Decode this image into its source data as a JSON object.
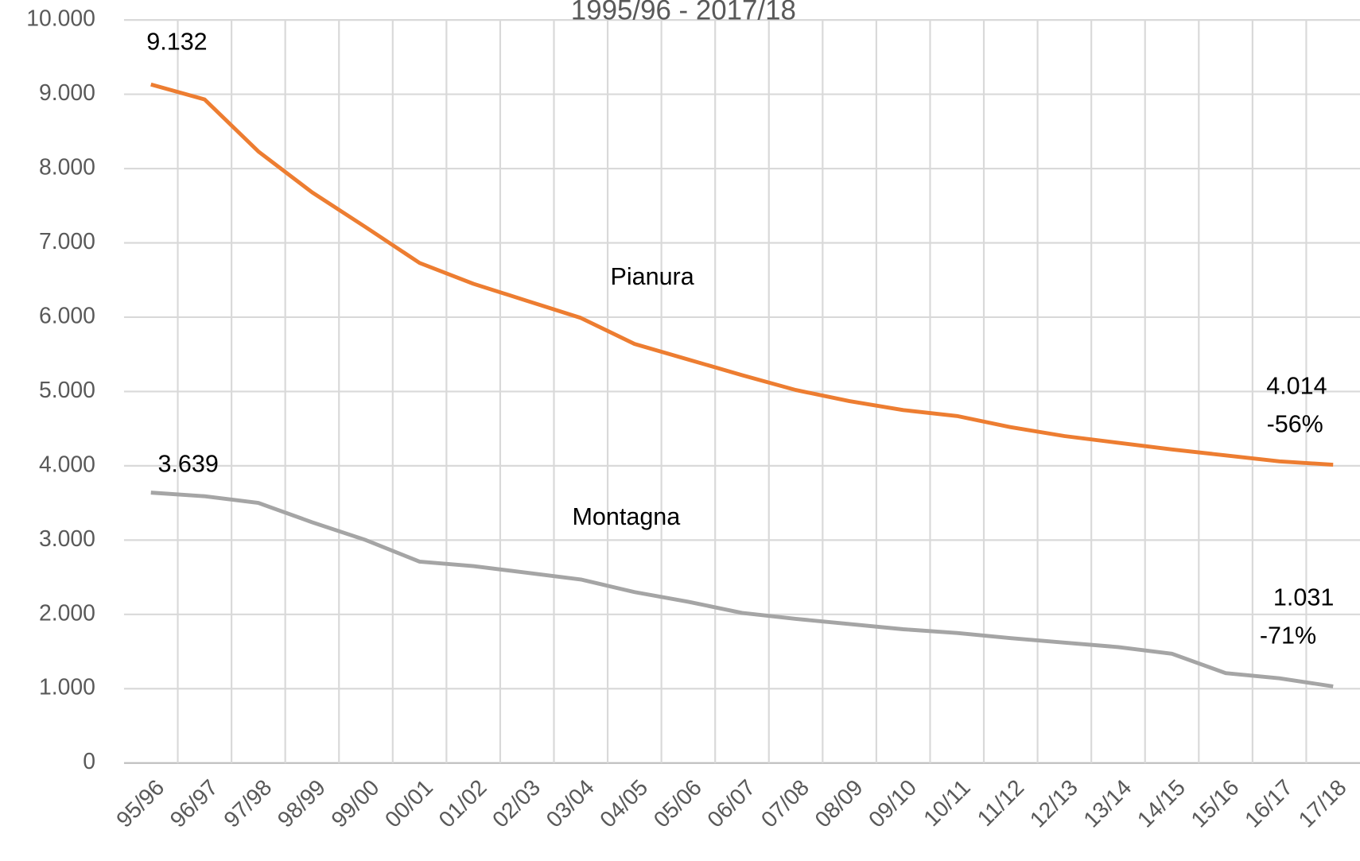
{
  "chart_data": {
    "type": "line",
    "title": "1995/96 - 2017/18",
    "categories": [
      "95/96",
      "96/97",
      "97/98",
      "98/99",
      "99/00",
      "00/01",
      "01/02",
      "02/03",
      "03/04",
      "04/05",
      "05/06",
      "06/07",
      "07/08",
      "08/09",
      "09/10",
      "10/11",
      "11/12",
      "12/13",
      "13/14",
      "14/15",
      "15/16",
      "16/17",
      "17/18"
    ],
    "series": [
      {
        "name": "Pianura",
        "color": "#ed7d31",
        "values": [
          9132,
          8930,
          8230,
          7680,
          7210,
          6730,
          6450,
          6220,
          5990,
          5640,
          5430,
          5220,
          5020,
          4870,
          4750,
          4670,
          4520,
          4400,
          4310,
          4220,
          4140,
          4060,
          4014
        ],
        "value_labels": [
          "9.132",
          null,
          null,
          null,
          null,
          null,
          null,
          null,
          null,
          null,
          null,
          null,
          null,
          null,
          null,
          null,
          null,
          null,
          null,
          null,
          null,
          null,
          "4.014"
        ]
      },
      {
        "name": "Montagna",
        "color": "#a5a5a5",
        "values": [
          3639,
          3590,
          3500,
          3240,
          3000,
          2710,
          2650,
          2560,
          2470,
          2300,
          2170,
          2020,
          1940,
          1870,
          1800,
          1750,
          1680,
          1620,
          1560,
          1470,
          1210,
          1140,
          1031
        ],
        "value_labels": [
          "3.639",
          null,
          null,
          null,
          null,
          null,
          null,
          null,
          null,
          null,
          null,
          null,
          null,
          null,
          null,
          null,
          null,
          null,
          null,
          null,
          null,
          null,
          "1.031"
        ]
      }
    ],
    "annotations": [
      "-56%",
      "-71%"
    ],
    "ylim": [
      0,
      10000
    ],
    "yticks": [
      0,
      {
        "value": 1000,
        "label": "1.000"
      },
      {
        "value": 2000,
        "label": "2.000"
      },
      {
        "value": 3000,
        "label": "3.000"
      },
      {
        "value": 4000,
        "label": "4.000"
      },
      {
        "value": 5000,
        "label": "5.000"
      },
      {
        "value": 6000,
        "label": "6.000"
      },
      {
        "value": 7000,
        "label": "7.000"
      },
      {
        "value": 8000,
        "label": "8.000"
      },
      {
        "value": 9000,
        "label": "9.000"
      },
      {
        "value": 10000,
        "label": "10.000"
      }
    ],
    "grid": true
  }
}
